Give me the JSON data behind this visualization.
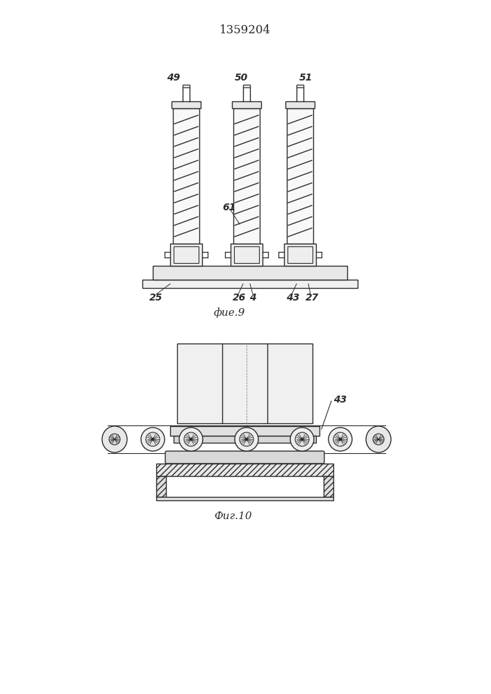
{
  "title": "1359204",
  "fig9_label": "фие.9",
  "fig10_label": "Фиг.10",
  "bg_color": "#ffffff",
  "line_color": "#2a2a2a",
  "label_49": "49",
  "label_50": "50",
  "label_51": "51",
  "label_61": "61",
  "label_25": "25",
  "label_26": "26",
  "label_4": "4",
  "label_43": "43",
  "label_27": "27",
  "label_43b": "43"
}
